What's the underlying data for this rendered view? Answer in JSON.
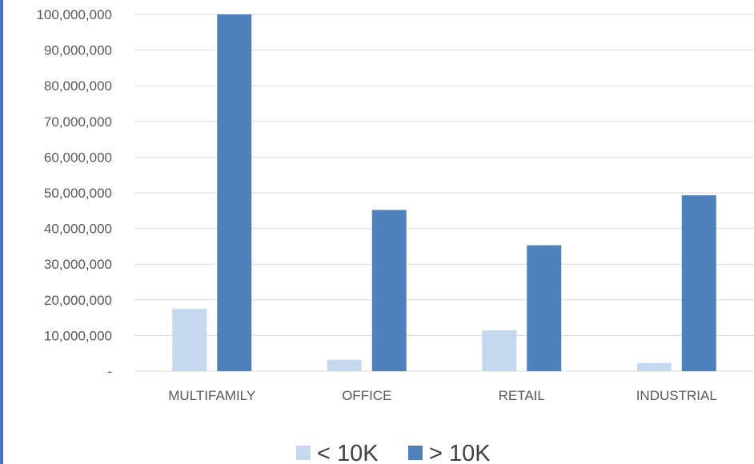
{
  "chart_data": {
    "type": "bar",
    "categories": [
      "MULTIFAMILY",
      "OFFICE",
      "RETAIL",
      "INDUSTRIAL"
    ],
    "series": [
      {
        "name": "< 10K",
        "values": [
          17500000,
          3200000,
          11500000,
          2300000
        ],
        "color": "#c5d8f0"
      },
      {
        "name": "> 10K",
        "values": [
          100000000,
          45200000,
          35300000,
          49300000
        ],
        "color": "#4f81bd"
      }
    ],
    "ylim": [
      0,
      100000000
    ],
    "yticks": [
      0,
      10000000,
      20000000,
      30000000,
      40000000,
      50000000,
      60000000,
      70000000,
      80000000,
      90000000,
      100000000
    ],
    "ytick_labels": [
      "-",
      "10,000,000",
      "20,000,000",
      "30,000,000",
      "40,000,000",
      "50,000,000",
      "60,000,000",
      "70,000,000",
      "80,000,000",
      "90,000,000",
      "100,000,000"
    ],
    "title": "",
    "xlabel": "",
    "ylabel": "",
    "grid": true,
    "legend_position": "bottom"
  },
  "colors": {
    "gridline": "#d9d9d9",
    "axis_text": "#595959",
    "left_border": "#4472c4"
  }
}
